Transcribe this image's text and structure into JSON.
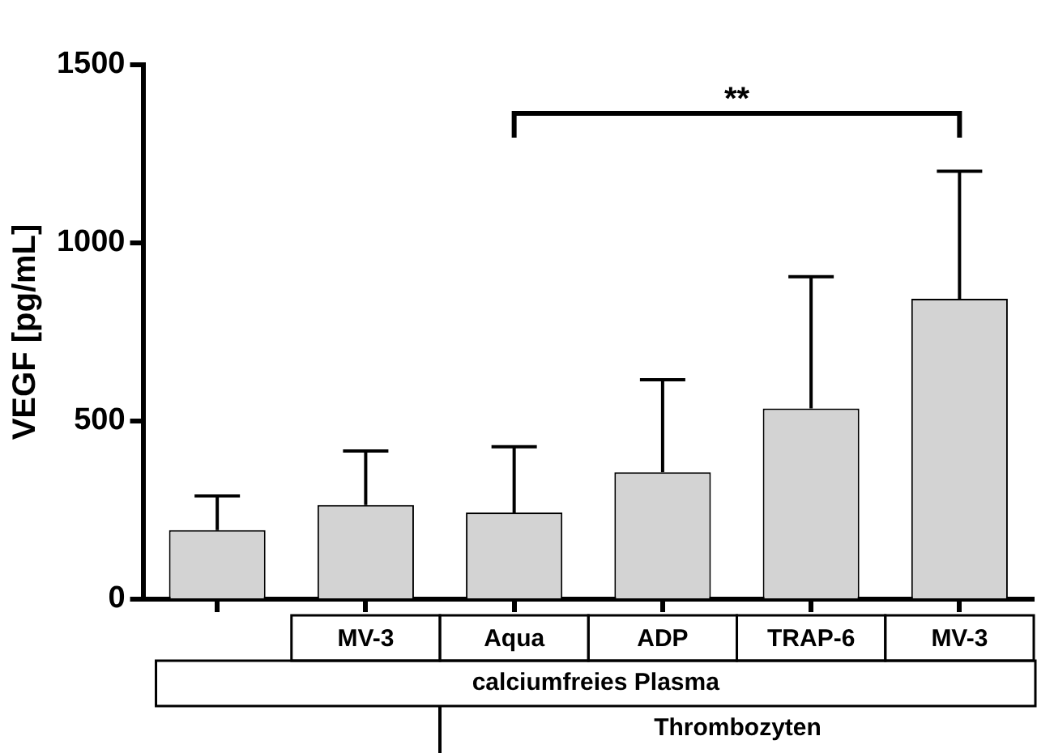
{
  "chart_data": {
    "type": "bar",
    "ylabel": "VEGF [pg/mL]",
    "categories": [
      null,
      "MV-3",
      "Aqua",
      "ADP",
      "TRAP-6",
      "MV-3"
    ],
    "values": [
      194,
      264,
      243,
      356,
      535,
      843
    ],
    "errors": [
      [
        194,
        290
      ],
      [
        264,
        416
      ],
      [
        243,
        428
      ],
      [
        356,
        616
      ],
      [
        535,
        905
      ],
      [
        843,
        1201
      ]
    ],
    "color": "#d3d3d3",
    "ylim": [
      0,
      1500
    ],
    "yticks": [
      0,
      500,
      1000,
      1500
    ],
    "grid": false,
    "legend": false,
    "annotations": [
      "**",
      "calciumfreies Plasma",
      "Thrombozyten"
    ]
  }
}
